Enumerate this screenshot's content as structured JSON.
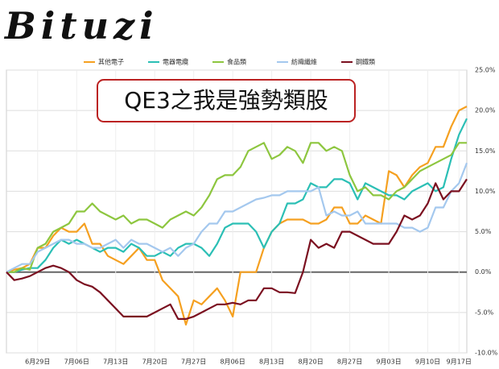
{
  "logo": "Bituzi",
  "chart_data": {
    "type": "line",
    "title": "QE3之我是強勢類股",
    "categories": [
      null,
      null,
      null,
      null,
      "6月29日",
      null,
      null,
      null,
      null,
      "7月06日",
      null,
      null,
      null,
      null,
      "7月13日",
      null,
      null,
      null,
      null,
      "7月20日",
      null,
      null,
      null,
      null,
      "7月27日",
      null,
      null,
      null,
      null,
      "8月06日",
      null,
      null,
      null,
      null,
      "8月13日",
      null,
      null,
      null,
      null,
      "8月20日",
      null,
      null,
      null,
      null,
      "8月27日",
      null,
      null,
      null,
      null,
      "9月03日",
      null,
      null,
      null,
      null,
      "9月10日",
      null,
      null,
      null,
      "9月17日",
      null
    ],
    "series": [
      {
        "name": "其他電子",
        "color": "#f5a020",
        "values": [
          0,
          0.3,
          0.5,
          1,
          3,
          3,
          4.5,
          5.5,
          5,
          5,
          6,
          3.5,
          3.5,
          2,
          1.5,
          1,
          2,
          3,
          1.5,
          1.5,
          -1,
          -2,
          -3,
          -6.5,
          -3.5,
          -4,
          -3,
          -2,
          -3.5,
          -5.5,
          0,
          0,
          0,
          3,
          5,
          6,
          6.5,
          6.5,
          6.5,
          6,
          6,
          6.5,
          8,
          8,
          6,
          6,
          7,
          6.5,
          6,
          12.5,
          12,
          10.5,
          12,
          13,
          13.5,
          15.5,
          15.5,
          18,
          20,
          20.5
        ]
      },
      {
        "name": "電器電纜",
        "color": "#2bbfb5",
        "values": [
          0,
          0,
          0.3,
          0.5,
          0.5,
          1.5,
          3,
          4,
          3.5,
          4,
          3.5,
          3,
          2.5,
          3,
          3,
          2.5,
          3.5,
          3,
          2,
          2,
          2.5,
          2,
          3,
          3.5,
          3.5,
          3,
          2,
          3.5,
          5.5,
          6,
          6,
          6,
          5,
          3,
          5,
          6,
          8.5,
          8.5,
          9,
          11,
          10.5,
          10.5,
          11.5,
          11.5,
          11,
          9,
          11,
          10.5,
          10,
          9.5,
          9.5,
          9,
          10,
          10.5,
          11,
          10,
          10.5,
          14,
          17,
          19
        ]
      },
      {
        "name": "食品類",
        "color": "#8dc63f",
        "values": [
          0,
          0,
          0.5,
          0.3,
          3,
          3.5,
          5,
          5.5,
          6,
          7.5,
          7.5,
          8.5,
          7.5,
          7,
          6.5,
          7,
          6,
          6.5,
          6.5,
          6,
          5.5,
          6.5,
          7,
          7.5,
          7,
          8,
          9.5,
          11.5,
          12,
          12,
          13,
          15,
          15.5,
          16,
          14,
          14.5,
          15.5,
          15,
          13.5,
          16,
          16,
          15,
          15.5,
          15,
          12,
          10,
          10.5,
          9.5,
          9.5,
          9,
          10,
          10.5,
          11.5,
          12.5,
          13,
          13.5,
          14,
          14.5,
          16,
          16
        ]
      },
      {
        "name": "紡織纖維",
        "color": "#a4c8ee",
        "values": [
          0,
          0.5,
          1,
          1,
          2.5,
          3,
          3.5,
          4,
          4,
          3.5,
          3.5,
          3,
          3,
          3.5,
          4,
          3,
          4,
          3.5,
          3.5,
          3,
          2.5,
          3,
          2,
          3,
          3.5,
          5,
          6,
          6,
          7.5,
          7.5,
          8,
          8.5,
          9,
          9.2,
          9.5,
          9.5,
          10,
          10,
          10,
          10,
          10.5,
          7,
          7.5,
          7,
          7,
          7.5,
          6,
          6,
          6,
          6,
          6,
          5.5,
          5.5,
          5,
          5.5,
          8,
          8,
          10,
          11,
          13.5
        ]
      },
      {
        "name": "鋼鐵類",
        "color": "#7b1020",
        "values": [
          0,
          -1,
          -0.8,
          -0.5,
          0,
          0.5,
          0.8,
          0.5,
          0,
          -1,
          -1.5,
          -1.8,
          -2.5,
          -3.5,
          -4.5,
          -5.5,
          -5.5,
          -5.5,
          -5.5,
          -5,
          -4.5,
          -4,
          -5.8,
          -5.8,
          -5.5,
          -5,
          -4.5,
          -4,
          -4,
          -3.8,
          -4,
          -3.5,
          -3.5,
          -2,
          -2,
          -2.5,
          -2.5,
          -2.6,
          0,
          4,
          3,
          3.5,
          3,
          5,
          5,
          4.5,
          4,
          3.5,
          3.5,
          3.5,
          5,
          7,
          6.5,
          7,
          8.5,
          11,
          9,
          10,
          10,
          11.5
        ]
      }
    ],
    "ylim": [
      -10,
      25
    ],
    "yticks": [
      {
        "value": -10,
        "label": "-10.0%"
      },
      {
        "value": -5,
        "label": "-5.0%"
      },
      {
        "value": 0,
        "label": "0.0%"
      },
      {
        "value": 5,
        "label": "5.0%"
      },
      {
        "value": 10,
        "label": "10.0%"
      },
      {
        "value": 15,
        "label": "15.0%"
      },
      {
        "value": 20,
        "label": "20.0%"
      },
      {
        "value": 25,
        "label": "25.0%"
      }
    ],
    "grid": true,
    "legend": "top"
  }
}
